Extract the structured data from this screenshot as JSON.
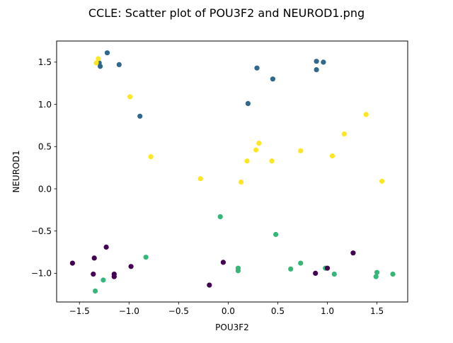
{
  "chart_data": {
    "type": "scatter",
    "title": "CCLE: Scatter plot of POU3F2 and NEUROD1.png",
    "xlabel": "POU3F2",
    "ylabel": "NEUROD1",
    "xlim": [
      -1.73,
      1.81
    ],
    "ylim": [
      -1.34,
      1.75
    ],
    "xticks": [
      -1.5,
      -1.0,
      -0.5,
      0.0,
      0.5,
      1.0,
      1.5
    ],
    "xtick_labels": [
      "−1.5",
      "−1.0",
      "−0.5",
      "0.0",
      "0.5",
      "1.0",
      "1.5"
    ],
    "yticks": [
      -1.0,
      -0.5,
      0.0,
      0.5,
      1.0,
      1.5
    ],
    "ytick_labels": [
      "−1.0",
      "−0.5",
      "0.0",
      "0.5",
      "1.0",
      "1.5"
    ],
    "grid": false,
    "legend": "none",
    "series": [
      {
        "color": "#30678d",
        "points": [
          [
            -1.22,
            1.61
          ],
          [
            -1.3,
            1.49
          ],
          [
            -1.29,
            1.45
          ],
          [
            -1.1,
            1.47
          ],
          [
            -0.89,
            0.86
          ],
          [
            0.29,
            1.43
          ],
          [
            0.2,
            1.01
          ],
          [
            0.45,
            1.3
          ],
          [
            0.89,
            1.51
          ],
          [
            0.96,
            1.5
          ],
          [
            0.89,
            1.41
          ]
        ]
      },
      {
        "color": "#fde724",
        "points": [
          [
            -1.31,
            1.54
          ],
          [
            -1.33,
            1.49
          ],
          [
            -0.99,
            1.09
          ],
          [
            -0.78,
            0.38
          ],
          [
            -0.28,
            0.12
          ],
          [
            0.13,
            0.08
          ],
          [
            0.19,
            0.33
          ],
          [
            0.28,
            0.46
          ],
          [
            0.31,
            0.54
          ],
          [
            0.44,
            0.33
          ],
          [
            0.73,
            0.45
          ],
          [
            1.05,
            0.39
          ],
          [
            1.17,
            0.65
          ],
          [
            1.39,
            0.88
          ],
          [
            1.55,
            0.09
          ]
        ]
      },
      {
        "color": "#35b778",
        "points": [
          [
            -0.08,
            -0.33
          ],
          [
            -0.83,
            -0.81
          ],
          [
            0.48,
            -0.54
          ],
          [
            -1.26,
            -1.08
          ],
          [
            -1.34,
            -1.21
          ],
          [
            0.1,
            -0.94
          ],
          [
            0.1,
            -0.97
          ],
          [
            0.63,
            -0.95
          ],
          [
            0.73,
            -0.88
          ],
          [
            0.98,
            -0.94
          ],
          [
            1.07,
            -1.01
          ],
          [
            1.5,
            -0.99
          ],
          [
            1.49,
            -1.04
          ],
          [
            1.66,
            -1.01
          ]
        ]
      },
      {
        "color": "#440154",
        "points": [
          [
            -1.57,
            -0.88
          ],
          [
            -1.35,
            -0.82
          ],
          [
            -1.36,
            -1.01
          ],
          [
            -1.23,
            -0.69
          ],
          [
            -1.15,
            -1.01
          ],
          [
            -1.15,
            -1.04
          ],
          [
            -0.98,
            -0.92
          ],
          [
            -0.05,
            -0.87
          ],
          [
            -0.19,
            -1.14
          ],
          [
            0.88,
            -1.0
          ],
          [
            1.0,
            -0.94
          ],
          [
            1.26,
            -0.76
          ]
        ]
      }
    ]
  }
}
